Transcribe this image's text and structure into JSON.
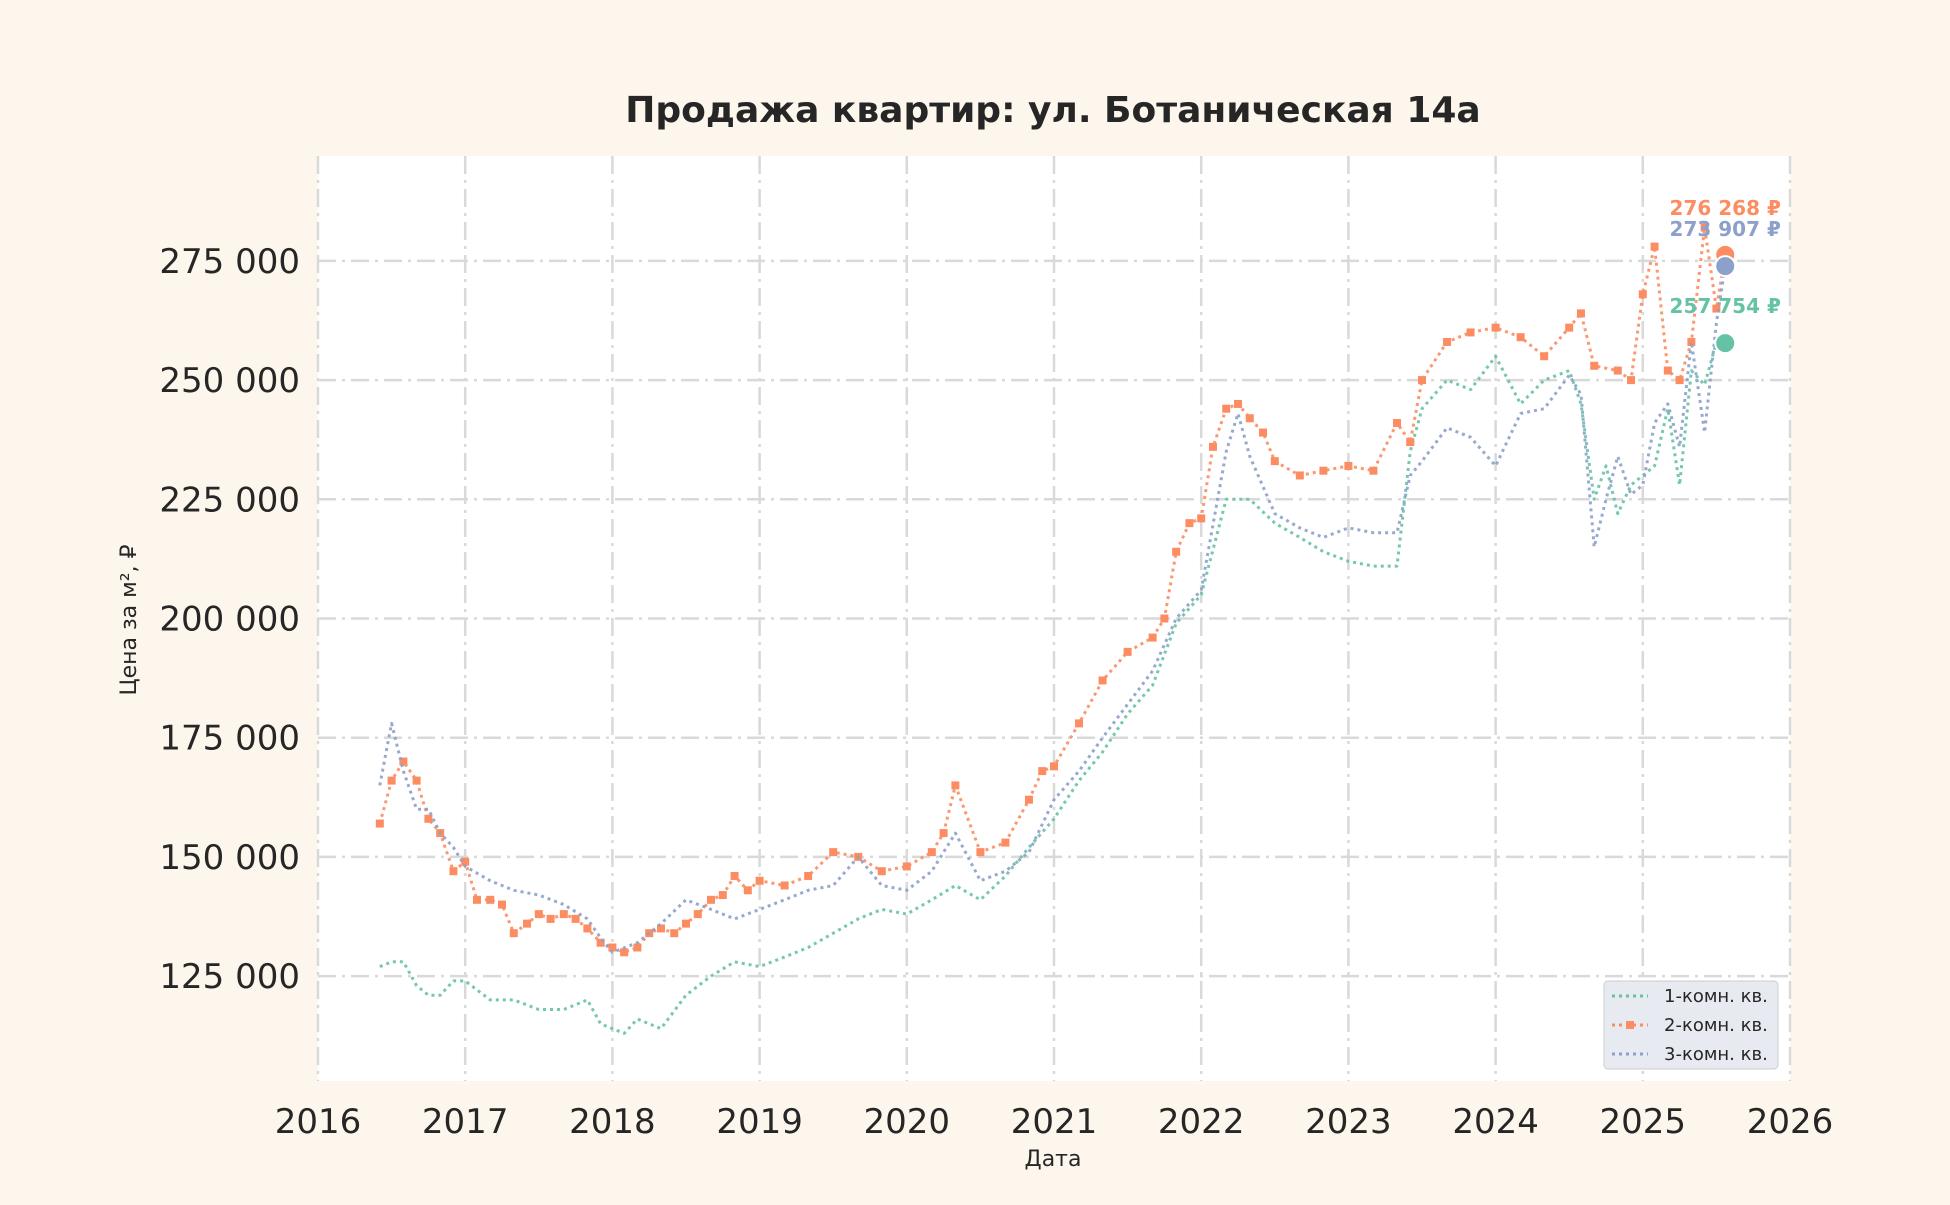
{
  "chart_data": {
    "type": "line",
    "title": "Продажа квартир: ул. Ботаническая 14а",
    "xlabel": "Дата",
    "ylabel": "Цена за м², ₽",
    "x_ticks": [
      "2016",
      "2017",
      "2018",
      "2019",
      "2020",
      "2021",
      "2022",
      "2023",
      "2024",
      "2025",
      "2026"
    ],
    "y_ticks": [
      "125 000",
      "150 000",
      "175 000",
      "200 000",
      "225 000",
      "250 000",
      "275 000"
    ],
    "y_tick_values": [
      125000,
      150000,
      175000,
      200000,
      225000,
      250000,
      275000
    ],
    "xlim": [
      2016.0,
      2026.0
    ],
    "ylim": [
      103000,
      297000
    ],
    "grid": true,
    "legend_position": "bottom-right",
    "series": [
      {
        "name": "1-комн. кв.",
        "color": "#66c2a5",
        "x": [
          2016.42,
          2016.5,
          2016.58,
          2016.67,
          2016.75,
          2016.83,
          2016.92,
          2017.0,
          2017.17,
          2017.33,
          2017.5,
          2017.67,
          2017.83,
          2017.92,
          2018.0,
          2018.08,
          2018.17,
          2018.33,
          2018.5,
          2018.67,
          2018.83,
          2019.0,
          2019.17,
          2019.33,
          2019.5,
          2019.67,
          2019.83,
          2020.0,
          2020.17,
          2020.33,
          2020.5,
          2020.67,
          2020.83,
          2021.0,
          2021.17,
          2021.33,
          2021.5,
          2021.67,
          2021.83,
          2022.0,
          2022.17,
          2022.33,
          2022.5,
          2022.67,
          2022.83,
          2023.0,
          2023.17,
          2023.33,
          2023.42,
          2023.5,
          2023.67,
          2023.83,
          2024.0,
          2024.17,
          2024.33,
          2024.5,
          2024.58,
          2024.67,
          2024.75,
          2024.83,
          2024.92,
          2025.0,
          2025.08,
          2025.17,
          2025.25,
          2025.33,
          2025.42,
          2025.5,
          2025.56
        ],
        "y": [
          127000,
          128000,
          128000,
          123000,
          121000,
          121000,
          124000,
          124000,
          120000,
          120000,
          118000,
          118000,
          120000,
          115000,
          114000,
          113000,
          116000,
          114000,
          121000,
          125000,
          128000,
          127000,
          129000,
          131000,
          134000,
          137000,
          139000,
          138000,
          141000,
          144000,
          141000,
          146000,
          152000,
          158000,
          166000,
          172000,
          180000,
          186000,
          199000,
          205000,
          225000,
          225000,
          220000,
          217000,
          214000,
          212000,
          211000,
          211000,
          235000,
          244000,
          250000,
          248000,
          255000,
          245000,
          250000,
          252000,
          245000,
          225000,
          232000,
          222000,
          228000,
          230000,
          232000,
          244000,
          228000,
          252000,
          249000,
          258000,
          257754
        ]
      },
      {
        "name": "2-комн. кв.",
        "color": "#fc8d62",
        "x": [
          2016.42,
          2016.5,
          2016.58,
          2016.67,
          2016.75,
          2016.83,
          2016.92,
          2017.0,
          2017.08,
          2017.17,
          2017.25,
          2017.33,
          2017.42,
          2017.5,
          2017.58,
          2017.67,
          2017.75,
          2017.83,
          2017.92,
          2018.0,
          2018.08,
          2018.17,
          2018.25,
          2018.33,
          2018.42,
          2018.5,
          2018.58,
          2018.67,
          2018.75,
          2018.83,
          2018.92,
          2019.0,
          2019.17,
          2019.33,
          2019.5,
          2019.67,
          2019.83,
          2020.0,
          2020.17,
          2020.25,
          2020.33,
          2020.5,
          2020.67,
          2020.83,
          2020.92,
          2021.0,
          2021.17,
          2021.33,
          2021.5,
          2021.67,
          2021.75,
          2021.83,
          2021.92,
          2022.0,
          2022.08,
          2022.17,
          2022.25,
          2022.33,
          2022.42,
          2022.5,
          2022.67,
          2022.83,
          2023.0,
          2023.17,
          2023.33,
          2023.42,
          2023.5,
          2023.67,
          2023.83,
          2024.0,
          2024.17,
          2024.33,
          2024.5,
          2024.58,
          2024.67,
          2024.83,
          2024.92,
          2025.0,
          2025.08,
          2025.17,
          2025.25,
          2025.33,
          2025.42,
          2025.5,
          2025.56
        ],
        "y": [
          157000,
          166000,
          170000,
          166000,
          158000,
          155000,
          147000,
          149000,
          141000,
          141000,
          140000,
          134000,
          136000,
          138000,
          137000,
          138000,
          137000,
          135000,
          132000,
          131000,
          130000,
          131000,
          134000,
          135000,
          134000,
          136000,
          138000,
          141000,
          142000,
          146000,
          143000,
          145000,
          144000,
          146000,
          151000,
          150000,
          147000,
          148000,
          151000,
          155000,
          165000,
          151000,
          153000,
          162000,
          168000,
          169000,
          178000,
          187000,
          193000,
          196000,
          200000,
          214000,
          220000,
          221000,
          236000,
          244000,
          245000,
          242000,
          239000,
          233000,
          230000,
          231000,
          232000,
          231000,
          241000,
          237000,
          250000,
          258000,
          260000,
          261000,
          259000,
          255000,
          261000,
          264000,
          253000,
          252000,
          250000,
          268000,
          278000,
          252000,
          250000,
          258000,
          282000,
          265000,
          276268
        ]
      },
      {
        "name": "3-комн. кв.",
        "color": "#8da0cb",
        "x": [
          2016.42,
          2016.5,
          2016.58,
          2016.67,
          2016.75,
          2016.83,
          2016.92,
          2017.0,
          2017.17,
          2017.33,
          2017.5,
          2017.67,
          2017.83,
          2017.92,
          2018.0,
          2018.17,
          2018.33,
          2018.5,
          2018.67,
          2018.83,
          2019.0,
          2019.17,
          2019.33,
          2019.5,
          2019.67,
          2019.83,
          2020.0,
          2020.17,
          2020.33,
          2020.5,
          2020.67,
          2020.83,
          2021.0,
          2021.17,
          2021.33,
          2021.5,
          2021.67,
          2021.83,
          2022.0,
          2022.17,
          2022.25,
          2022.33,
          2022.5,
          2022.67,
          2022.83,
          2023.0,
          2023.17,
          2023.33,
          2023.42,
          2023.5,
          2023.67,
          2023.83,
          2024.0,
          2024.17,
          2024.33,
          2024.5,
          2024.58,
          2024.67,
          2024.75,
          2024.83,
          2024.92,
          2025.0,
          2025.08,
          2025.17,
          2025.25,
          2025.33,
          2025.42,
          2025.5,
          2025.56
        ],
        "y": [
          165000,
          178000,
          168000,
          160000,
          160000,
          155000,
          152000,
          148000,
          145000,
          143000,
          142000,
          140000,
          137000,
          133000,
          130000,
          132000,
          136000,
          141000,
          139000,
          137000,
          139000,
          141000,
          143000,
          144000,
          150000,
          144000,
          143000,
          147000,
          155000,
          145000,
          147000,
          151000,
          162000,
          168000,
          175000,
          182000,
          189000,
          200000,
          206000,
          235000,
          243000,
          234000,
          222000,
          219000,
          217000,
          219000,
          218000,
          218000,
          230000,
          233000,
          240000,
          238000,
          232000,
          243000,
          244000,
          251000,
          247000,
          215000,
          225000,
          234000,
          226000,
          228000,
          241000,
          245000,
          236000,
          258000,
          239000,
          262000,
          273907
        ]
      }
    ],
    "end_labels": [
      {
        "text": "276 268 ₽",
        "color": "#fc8d62",
        "x": 2025.56,
        "y": 276268
      },
      {
        "text": "273 907 ₽",
        "color": "#8da0cb",
        "x": 2025.56,
        "y": 273907
      },
      {
        "text": "257 754 ₽",
        "color": "#66c2a5",
        "x": 2025.56,
        "y": 257754
      }
    ]
  }
}
